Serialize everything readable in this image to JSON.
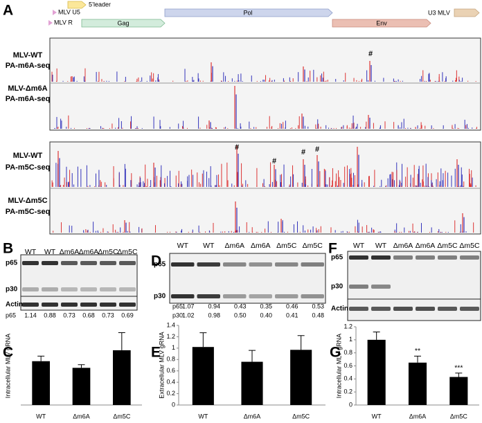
{
  "panel_labels": [
    "A",
    "B",
    "C",
    "D",
    "E",
    "F",
    "G"
  ],
  "genome_map": [
    "5’leader",
    "MLV U5",
    "MLV R",
    "Gag",
    "Pol",
    "Env",
    "U3 MLV"
  ],
  "tracks": [
    {
      "sample": "MLV-WT",
      "assay": "PA-m6A-seq"
    },
    {
      "sample": "MLV-Δm6A",
      "assay": "PA-m6A-seq"
    },
    {
      "sample": "MLV-WT",
      "assay": "PA-m5C-seq"
    },
    {
      "sample": "MLV-Δm5C",
      "assay": "PA-m5C-seq"
    }
  ],
  "hash_marks": [
    "#",
    "#",
    "#",
    "#",
    "#"
  ],
  "blots": [
    {
      "lanes": [
        "WT",
        "WT",
        "Δm6A",
        "Δm6A",
        "Δm5C",
        "Δm5C"
      ],
      "bands": [
        "p65",
        "p30",
        "Actin"
      ],
      "quant": [
        {
          "label": "p65",
          "values": [
            "1.14",
            "0.88",
            "0.73",
            "0.68",
            "0.73",
            "0.69"
          ]
        }
      ]
    },
    {
      "lanes": [
        "WT",
        "WT",
        "Δm6A",
        "Δm6A",
        "Δm5C",
        "Δm5C"
      ],
      "bands": [
        "p65",
        "p30"
      ],
      "quant": [
        {
          "label": "p65",
          "values": [
            "1.07",
            "0.94",
            "0.43",
            "0.35",
            "0.46",
            "0.53"
          ]
        },
        {
          "label": "p30",
          "values": [
            "1.02",
            "0.98",
            "0.50",
            "0.40",
            "0.41",
            "0.48"
          ]
        }
      ]
    },
    {
      "lanes": [
        "WT",
        "WT",
        "Δm6A",
        "Δm6A",
        "Δm5C",
        "Δm5C"
      ],
      "bands": [
        "p65",
        "p30",
        "Actin"
      ],
      "quant": []
    }
  ],
  "chart_data": [
    {
      "type": "bar",
      "y_label": "Intracellular MLV gRNA",
      "categories": [
        "WT",
        "Δm6A",
        "Δm5C"
      ],
      "values": [
        1.12,
        0.95,
        1.4
      ],
      "errors": [
        0.13,
        0.08,
        0.45
      ],
      "ylim": [
        0,
        2
      ],
      "color": "#000000"
    },
    {
      "type": "bar",
      "y_label": "Extracellular MLV gRNA",
      "categories": [
        "WT",
        "Δm6A",
        "Δm5C"
      ],
      "values": [
        1.02,
        0.76,
        0.97
      ],
      "errors": [
        0.25,
        0.2,
        0.25
      ],
      "ylim": [
        0,
        1.4
      ],
      "yticks": [
        0,
        0.2,
        0.4,
        0.6,
        0.8,
        1,
        1.2,
        1.4
      ],
      "color": "#000000"
    },
    {
      "type": "bar",
      "y_label": "Intracellular MLV gRNA",
      "categories": [
        "WT",
        "Δm6A",
        "Δm5C"
      ],
      "values": [
        1.0,
        0.65,
        0.43
      ],
      "errors": [
        0.12,
        0.1,
        0.06
      ],
      "annotations": [
        null,
        "**",
        "***"
      ],
      "ylim": [
        0,
        1.2
      ],
      "yticks": [
        0,
        0.2,
        0.4,
        0.6,
        0.8,
        1,
        1.2
      ],
      "color": "#000000"
    }
  ]
}
